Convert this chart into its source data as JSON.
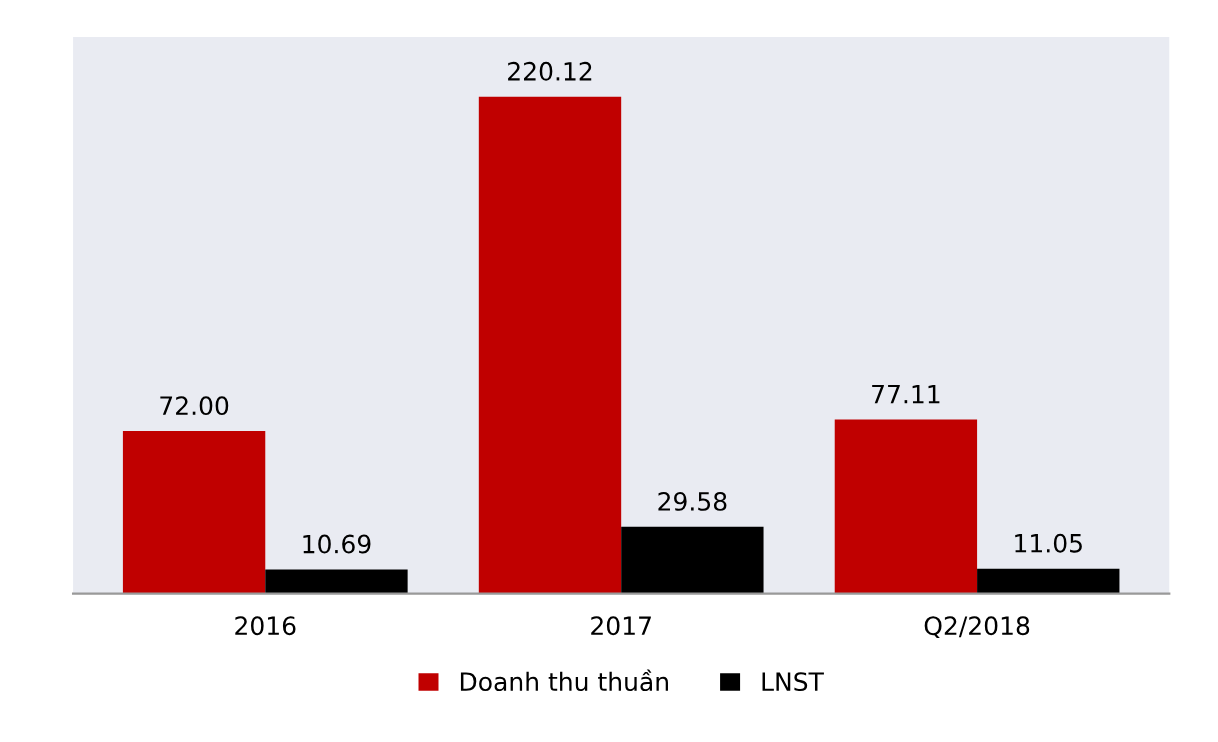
{
  "chart_data": {
    "type": "bar",
    "categories": [
      "2016",
      "2017",
      "Q2/2018"
    ],
    "series": [
      {
        "name": "Doanh thu thuần",
        "color": "#c00000",
        "values": [
          72.0,
          220.12,
          77.11
        ],
        "value_labels": [
          "72.00",
          "220.12",
          "77.11"
        ]
      },
      {
        "name": "LNST",
        "color": "#000000",
        "values": [
          10.69,
          29.58,
          11.05
        ],
        "value_labels": [
          "10.69",
          "29.58",
          "11.05"
        ]
      }
    ],
    "legend": "bottom",
    "grid": false
  }
}
